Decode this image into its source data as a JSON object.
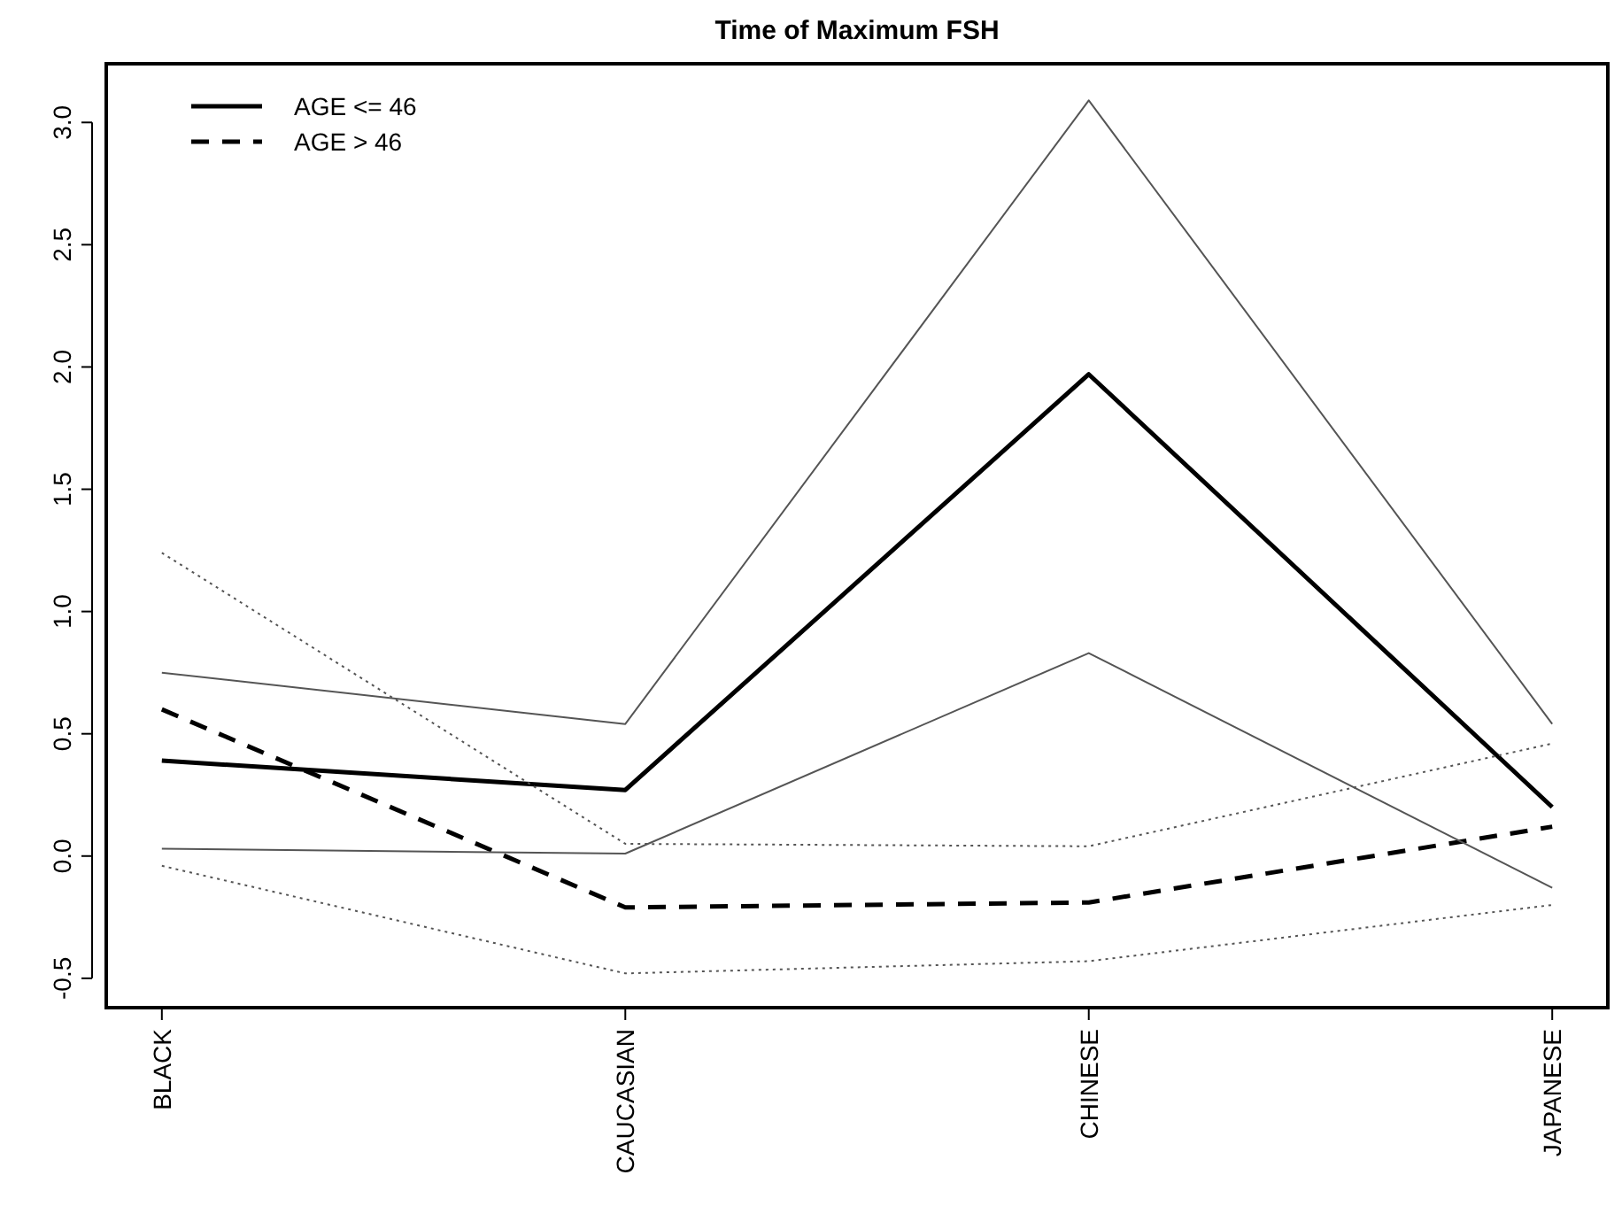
{
  "chart_data": {
    "type": "line",
    "title": "Time of Maximum FSH",
    "categories": [
      "BLACK",
      "CAUCASIAN",
      "CHINESE",
      "JAPANESE"
    ],
    "series": [
      {
        "name": "AGE <= 46",
        "color": "#000000",
        "line_style": "solid",
        "values": [
          0.39,
          0.27,
          1.97,
          0.2
        ]
      },
      {
        "name": "AGE > 46",
        "color": "#000000",
        "line_style": "dashed",
        "values": [
          0.6,
          -0.21,
          -0.19,
          0.12
        ]
      },
      {
        "color": "#555555",
        "line_style": "solid",
        "values": [
          0.75,
          0.54,
          3.09,
          0.54
        ]
      },
      {
        "color": "#555555",
        "line_style": "solid",
        "values": [
          0.03,
          0.01,
          0.83,
          -0.13
        ]
      },
      {
        "color": "#555555",
        "line_style": "dotted",
        "values": [
          1.24,
          0.05,
          0.04,
          0.46
        ]
      },
      {
        "color": "#555555",
        "line_style": "dotted",
        "values": [
          -0.04,
          -0.48,
          -0.43,
          -0.2
        ]
      }
    ],
    "ylim": [
      -0.62,
      3.24
    ],
    "yticks": [
      {
        "value": -0.5,
        "label": "-0.5"
      },
      {
        "value": 0,
        "label": "0.0"
      },
      {
        "value": 0.5,
        "label": "0.5"
      },
      {
        "value": 1,
        "label": "1.0"
      },
      {
        "value": 1.5,
        "label": "1.5"
      },
      {
        "value": 2,
        "label": "2.0"
      },
      {
        "value": 2.5,
        "label": "2.5"
      },
      {
        "value": 3,
        "label": "3.0"
      }
    ],
    "grid": false,
    "legend": "top left",
    "marker": "none"
  }
}
